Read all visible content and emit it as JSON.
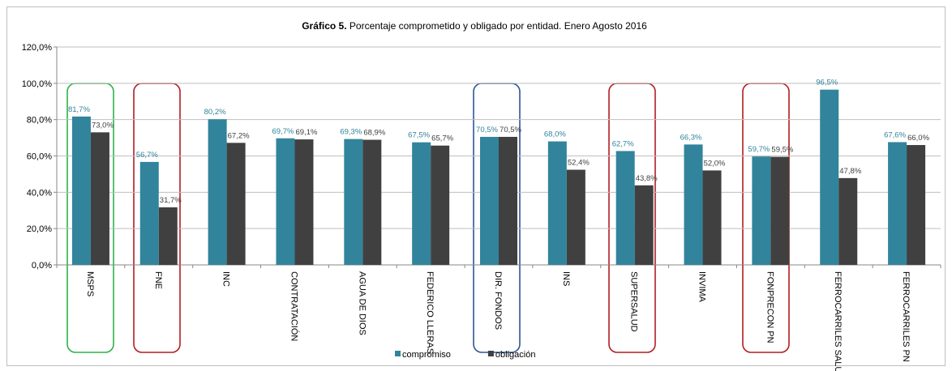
{
  "chart_data": {
    "type": "bar",
    "title_bold": "Gráfico 5.",
    "title": "Porcentaje comprometido y obligado por entidad. Enero Agosto 2016",
    "categories": [
      "MSPS",
      "FNE",
      "INC",
      "CONTRATACIÓN",
      "AGUA DE DIOS",
      "FEDERICO LLERAS",
      "DIR. FONDOS",
      "INS",
      "SUPERSALUD",
      "INVIMA",
      "FONPRECON PN",
      "FERROCARRILES SALUD",
      "FERROCARRILES PN"
    ],
    "series": [
      {
        "name": "compromiso",
        "color": "#31849b",
        "values": [
          81.7,
          56.7,
          80.2,
          69.7,
          69.3,
          67.5,
          70.5,
          68.0,
          62.7,
          66.3,
          59.7,
          96.5,
          67.6
        ],
        "value_labels": [
          "81,7%",
          "56,7%",
          "80,2%",
          "69,7%",
          "69,3%",
          "67,5%",
          "70,5%",
          "68,0%",
          "62,7%",
          "66,3%",
          "59,7%",
          "96,5%",
          "67,6%"
        ]
      },
      {
        "name": "obligación",
        "color": "#404040",
        "values": [
          73.0,
          31.7,
          67.2,
          69.1,
          68.9,
          65.7,
          70.5,
          52.4,
          43.8,
          52.0,
          59.5,
          47.8,
          66.0
        ],
        "value_labels": [
          "73,0%",
          "31,7%",
          "67,2%",
          "69,1%",
          "68,9%",
          "65,7%",
          "70,5%",
          "52,4%",
          "43,8%",
          "52,0%",
          "59,5%",
          "47,8%",
          "66,0%"
        ]
      }
    ],
    "ylim": [
      0,
      120
    ],
    "yticks": [
      {
        "value": 0,
        "label": "0,0%"
      },
      {
        "value": 20,
        "label": "20,0%"
      },
      {
        "value": 40,
        "label": "40,0%"
      },
      {
        "value": 60,
        "label": "60,0%"
      },
      {
        "value": 80,
        "label": "80,0%"
      },
      {
        "value": 100,
        "label": "100,0%"
      },
      {
        "value": 120,
        "label": "120,0%"
      }
    ],
    "grid": true,
    "legend": "bottom"
  }
}
